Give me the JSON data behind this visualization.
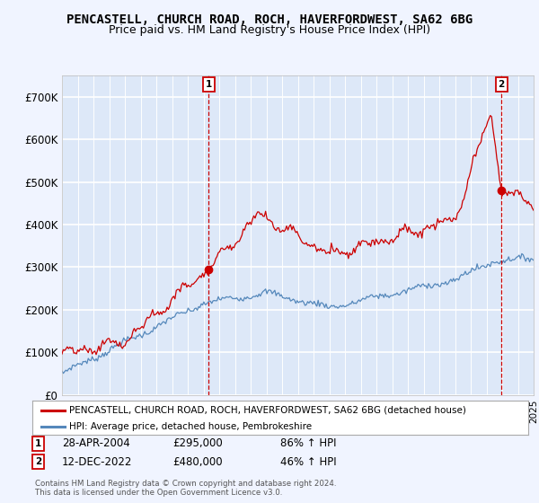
{
  "title": "PENCASTELL, CHURCH ROAD, ROCH, HAVERFORDWEST, SA62 6BG",
  "subtitle": "Price paid vs. HM Land Registry's House Price Index (HPI)",
  "title_fontsize": 10,
  "subtitle_fontsize": 9,
  "ylim": [
    0,
    750000
  ],
  "yticks": [
    0,
    100000,
    200000,
    300000,
    400000,
    500000,
    600000,
    700000
  ],
  "ytick_labels": [
    "£0",
    "£100K",
    "£200K",
    "£300K",
    "£400K",
    "£500K",
    "£600K",
    "£700K"
  ],
  "background_color": "#f0f4ff",
  "plot_bg_color": "#dde8f8",
  "grid_color": "#ffffff",
  "sale1_x": 2004.32,
  "sale1_y": 295000,
  "sale1_label": "1",
  "sale2_x": 2022.95,
  "sale2_y": 480000,
  "sale2_label": "2",
  "red_line_color": "#cc0000",
  "blue_line_color": "#5588bb",
  "legend_label1": "PENCASTELL, CHURCH ROAD, ROCH, HAVERFORDWEST, SA62 6BG (detached house)",
  "legend_label2": "HPI: Average price, detached house, Pembrokeshire",
  "annotation1_date": "28-APR-2004",
  "annotation1_price": "£295,000",
  "annotation1_hpi": "86% ↑ HPI",
  "annotation2_date": "12-DEC-2022",
  "annotation2_price": "£480,000",
  "annotation2_hpi": "46% ↑ HPI",
  "copyright_text": "Contains HM Land Registry data © Crown copyright and database right 2024.\nThis data is licensed under the Open Government Licence v3.0.",
  "xmin": 1995,
  "xmax": 2025
}
